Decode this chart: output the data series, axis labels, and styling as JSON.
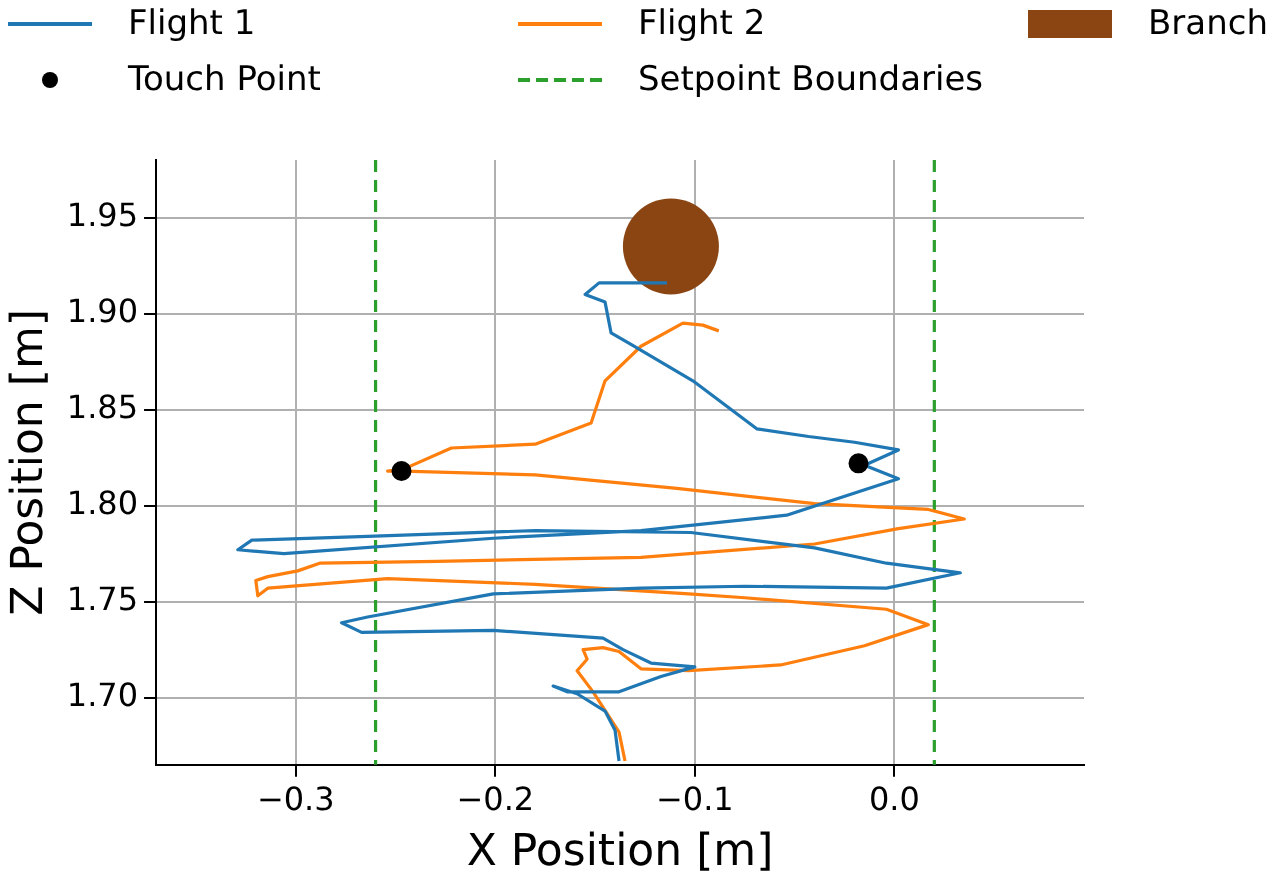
{
  "chart_data": {
    "type": "line",
    "xlabel": "X Position [m]",
    "ylabel": "Z Position [m]",
    "xlim": [
      -0.37,
      0.095
    ],
    "ylim": [
      1.665,
      1.98
    ],
    "xticks": [
      {
        "value": -0.3,
        "label": "−0.3"
      },
      {
        "value": -0.2,
        "label": "−0.2"
      },
      {
        "value": -0.1,
        "label": "−0.1"
      },
      {
        "value": 0,
        "label": "0.0"
      }
    ],
    "yticks": [
      {
        "value": 1.7,
        "label": "1.70"
      },
      {
        "value": 1.75,
        "label": "1.75"
      },
      {
        "value": 1.8,
        "label": "1.80"
      },
      {
        "value": 1.85,
        "label": "1.85"
      },
      {
        "value": 1.9,
        "label": "1.90"
      },
      {
        "value": 1.95,
        "label": "1.95"
      }
    ],
    "grid": true,
    "legend": "top",
    "series": [
      {
        "name": "Flight 1",
        "color": "#1f77b4",
        "x": [
          -0.138,
          -0.14,
          -0.145,
          -0.159,
          -0.171,
          -0.164,
          -0.138,
          -0.117,
          -0.1,
          -0.122,
          -0.136,
          -0.146,
          -0.201,
          -0.267,
          -0.277,
          -0.264,
          -0.201,
          -0.127,
          -0.075,
          -0.004,
          0.033,
          -0.004,
          -0.04,
          -0.102,
          -0.18,
          -0.264,
          -0.322,
          -0.329,
          -0.306,
          -0.201,
          -0.127,
          -0.054,
          0.002,
          -0.015,
          0.002,
          -0.02,
          -0.043,
          -0.069,
          -0.101,
          -0.132,
          -0.142,
          -0.145,
          -0.155,
          -0.148,
          -0.127,
          -0.114
        ],
        "values": [
          1.667,
          1.683,
          1.693,
          1.702,
          1.706,
          1.703,
          1.703,
          1.711,
          1.716,
          1.718,
          1.725,
          1.731,
          1.735,
          1.734,
          1.739,
          1.742,
          1.754,
          1.757,
          1.758,
          1.757,
          1.765,
          1.77,
          1.778,
          1.786,
          1.787,
          1.784,
          1.782,
          1.777,
          1.775,
          1.783,
          1.787,
          1.795,
          1.814,
          1.821,
          1.829,
          1.833,
          1.836,
          1.84,
          1.865,
          1.884,
          1.89,
          1.906,
          1.91,
          1.916,
          1.916,
          1.916
        ]
      },
      {
        "name": "Flight 2",
        "color": "#ff7f0e",
        "x": [
          -0.135,
          -0.138,
          -0.151,
          -0.159,
          -0.154,
          -0.156,
          -0.146,
          -0.138,
          -0.127,
          -0.103,
          -0.057,
          -0.015,
          0.017,
          -0.004,
          -0.075,
          -0.103,
          -0.18,
          -0.254,
          -0.314,
          -0.319,
          -0.32,
          -0.314,
          -0.299,
          -0.288,
          -0.229,
          -0.127,
          -0.04,
          0.002,
          0.035,
          0.017,
          -0.04,
          -0.109,
          -0.18,
          -0.246,
          -0.254,
          -0.246,
          -0.222,
          -0.18,
          -0.152,
          -0.145,
          -0.127,
          -0.106,
          -0.096,
          -0.088
        ],
        "values": [
          1.667,
          1.682,
          1.703,
          1.714,
          1.72,
          1.725,
          1.726,
          1.724,
          1.715,
          1.714,
          1.717,
          1.727,
          1.738,
          1.746,
          1.752,
          1.754,
          1.759,
          1.762,
          1.757,
          1.753,
          1.761,
          1.763,
          1.766,
          1.77,
          1.771,
          1.773,
          1.78,
          1.788,
          1.793,
          1.798,
          1.801,
          1.809,
          1.816,
          1.818,
          1.818,
          1.819,
          1.83,
          1.832,
          1.843,
          1.865,
          1.883,
          1.895,
          1.894,
          1.891
        ]
      },
      {
        "name": "Branch",
        "type": "bubble",
        "color": "#8b4513",
        "x": [
          -0.112
        ],
        "values": [
          1.935
        ],
        "sizes": [
          1
        ]
      },
      {
        "name": "Touch Point",
        "type": "scatter",
        "color": "#000000",
        "marker": "circle",
        "x": [
          -0.247,
          -0.018
        ],
        "values": [
          1.818,
          1.822
        ]
      }
    ],
    "ref_lines": [
      {
        "axis": "x",
        "value": -0.26,
        "label": "Setpoint Boundaries",
        "color": "#2ca02c",
        "line_style": "dashed"
      },
      {
        "axis": "x",
        "value": 0.02,
        "color": "#2ca02c",
        "line_style": "dashed"
      }
    ]
  }
}
